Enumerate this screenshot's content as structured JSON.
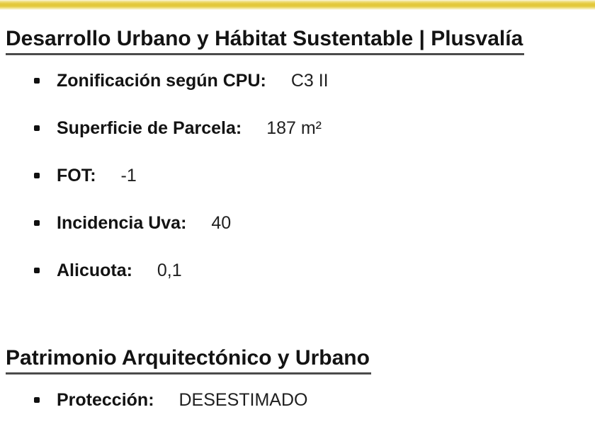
{
  "accent": {
    "bar_color": "#e3c83b"
  },
  "sections": [
    {
      "title": "Desarrollo Urbano y Hábitat Sustentable | Plusvalía",
      "items": [
        {
          "label": "Zonificación según CPU:",
          "value": "C3 II"
        },
        {
          "label": "Superficie de Parcela:",
          "value": "187 m²"
        },
        {
          "label": "FOT:",
          "value": "-1"
        },
        {
          "label": "Incidencia Uva:",
          "value": "40"
        },
        {
          "label": "Alicuota:",
          "value": "0,1"
        }
      ]
    },
    {
      "title": "Patrimonio Arquitectónico y Urbano",
      "items": [
        {
          "label": "Protección:",
          "value": "DESESTIMADO"
        }
      ]
    }
  ]
}
